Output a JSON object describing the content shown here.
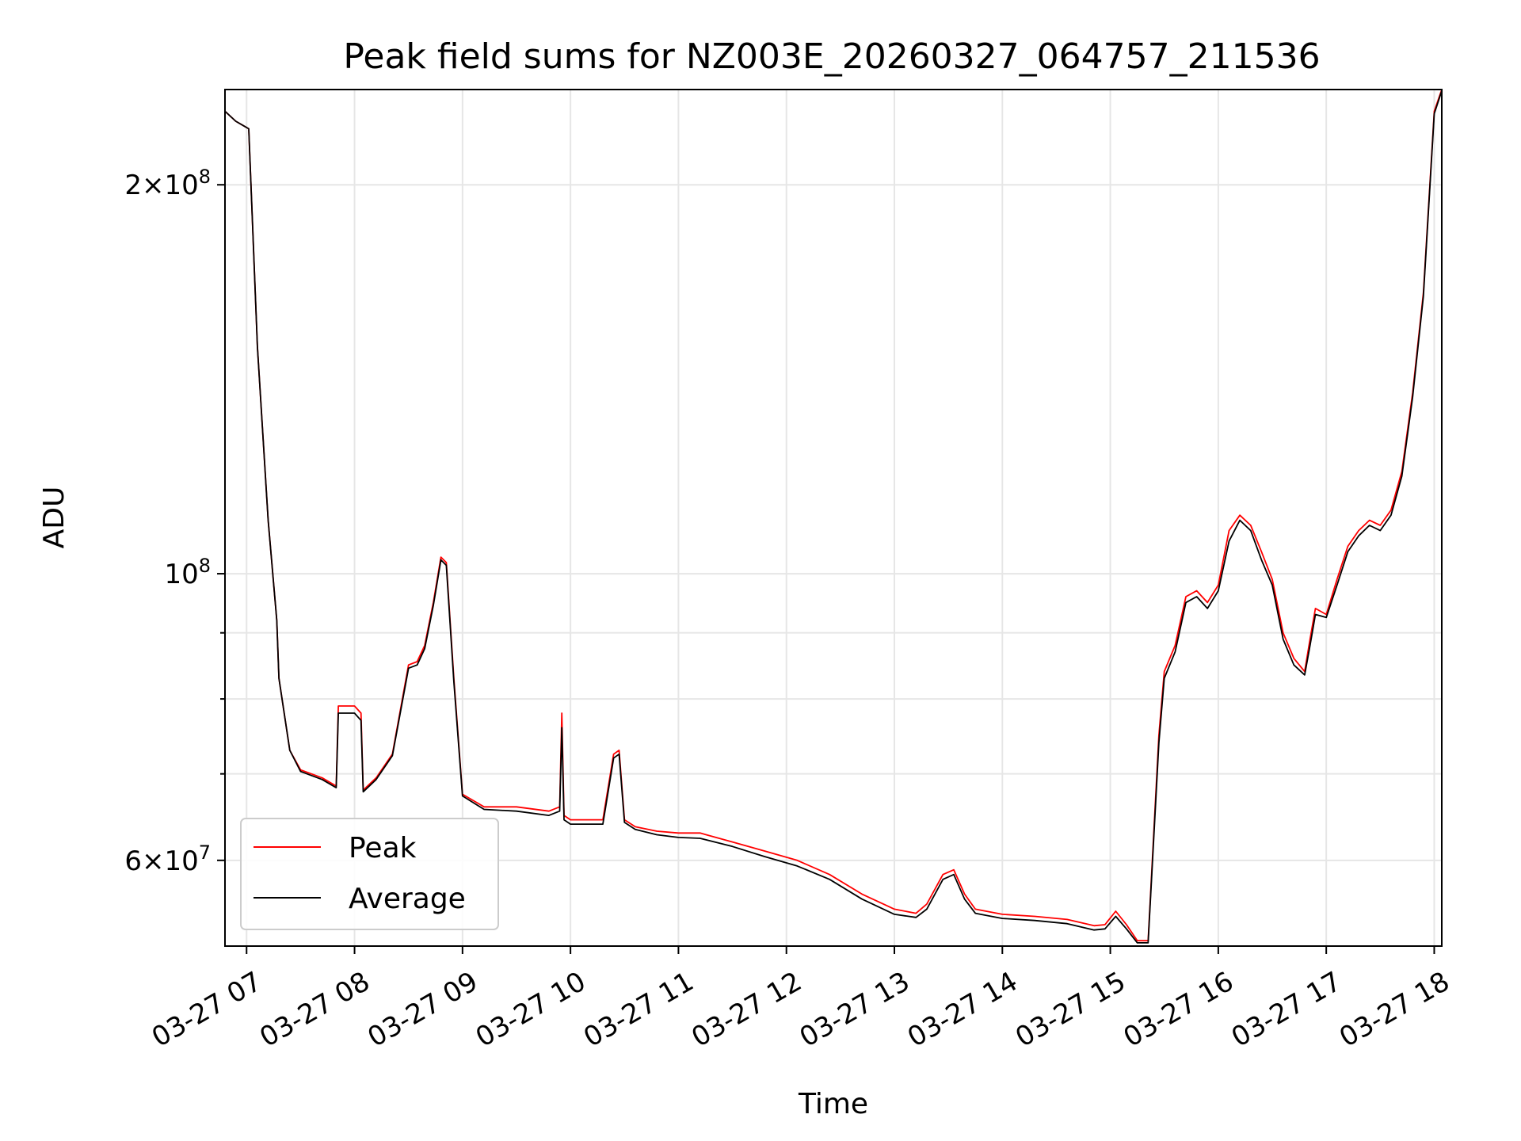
{
  "chart_data": {
    "type": "line",
    "title": "Peak field sums for NZ003E_20260327_064757_211536",
    "xlabel": "Time",
    "ylabel": "ADU",
    "yscale": "log",
    "ylim": [
      51500000,
      237000000
    ],
    "xlim": [
      6.8,
      18.07
    ],
    "grid": true,
    "legend_position": "lower-left",
    "x_ticks": [
      {
        "value": 7,
        "label": "03-27 07"
      },
      {
        "value": 8,
        "label": "03-27 08"
      },
      {
        "value": 9,
        "label": "03-27 09"
      },
      {
        "value": 10,
        "label": "03-27 10"
      },
      {
        "value": 11,
        "label": "03-27 11"
      },
      {
        "value": 12,
        "label": "03-27 12"
      },
      {
        "value": 13,
        "label": "03-27 13"
      },
      {
        "value": 14,
        "label": "03-27 14"
      },
      {
        "value": 15,
        "label": "03-27 15"
      },
      {
        "value": 16,
        "label": "03-27 16"
      },
      {
        "value": 17,
        "label": "03-27 17"
      },
      {
        "value": 18,
        "label": "03-27 18"
      }
    ],
    "y_major_ticks": [
      {
        "value": 60000000,
        "mantissa": "6",
        "exponent": "7"
      },
      {
        "value": 100000000,
        "mantissa": "",
        "exponent": "8"
      },
      {
        "value": 200000000,
        "mantissa": "2",
        "exponent": "8"
      }
    ],
    "y_minor_ticks": [
      70000000,
      80000000,
      90000000
    ],
    "series": [
      {
        "name": "Peak",
        "color": "#ff0000",
        "x": [
          6.8,
          6.9,
          6.98,
          7.02,
          7.1,
          7.2,
          7.28,
          7.3,
          7.4,
          7.5,
          7.7,
          7.83,
          7.85,
          8.0,
          8.06,
          8.08,
          8.2,
          8.35,
          8.5,
          8.58,
          8.65,
          8.73,
          8.8,
          8.85,
          8.92,
          9.0,
          9.2,
          9.5,
          9.8,
          9.9,
          9.92,
          9.94,
          10.0,
          10.3,
          10.4,
          10.45,
          10.5,
          10.6,
          10.8,
          11.0,
          11.2,
          11.5,
          11.8,
          12.1,
          12.4,
          12.7,
          13.0,
          13.2,
          13.3,
          13.45,
          13.55,
          13.65,
          13.75,
          13.85,
          14.0,
          14.3,
          14.6,
          14.85,
          14.95,
          15.05,
          15.15,
          15.25,
          15.35,
          15.45,
          15.5,
          15.6,
          15.7,
          15.8,
          15.9,
          16.0,
          16.1,
          16.2,
          16.3,
          16.4,
          16.5,
          16.6,
          16.7,
          16.8,
          16.85,
          16.9,
          17.0,
          17.1,
          17.2,
          17.3,
          17.4,
          17.5,
          17.6,
          17.7,
          17.8,
          17.9,
          18.0,
          18.07
        ],
        "y": [
          228000000,
          224000000,
          222000000,
          221000000,
          150000000,
          110000000,
          92000000,
          83000000,
          73000000,
          70500000,
          69500000,
          68500000,
          79000000,
          79000000,
          78000000,
          68000000,
          69500000,
          72500000,
          85000000,
          85500000,
          88000000,
          95000000,
          103000000,
          102000000,
          83000000,
          67500000,
          66000000,
          66000000,
          65500000,
          66000000,
          78000000,
          65000000,
          64500000,
          64500000,
          72500000,
          73000000,
          64500000,
          63700000,
          63200000,
          63000000,
          63000000,
          62000000,
          61000000,
          60000000,
          58500000,
          56500000,
          55000000,
          54600000,
          55500000,
          58500000,
          59000000,
          56500000,
          55000000,
          54800000,
          54500000,
          54300000,
          54000000,
          53400000,
          53500000,
          54800000,
          53500000,
          52000000,
          52000000,
          75000000,
          84000000,
          88000000,
          96000000,
          97000000,
          95000000,
          98000000,
          108000000,
          111000000,
          109000000,
          104000000,
          99000000,
          90000000,
          86000000,
          84000000,
          89000000,
          94000000,
          93000000,
          99000000,
          105000000,
          108000000,
          110000000,
          109000000,
          112000000,
          120000000,
          138000000,
          165000000,
          228000000,
          237000000
        ]
      },
      {
        "name": "Average",
        "color": "#000000",
        "x": [
          6.8,
          6.9,
          6.98,
          7.02,
          7.1,
          7.2,
          7.28,
          7.3,
          7.4,
          7.5,
          7.7,
          7.83,
          7.85,
          8.0,
          8.06,
          8.08,
          8.2,
          8.35,
          8.5,
          8.58,
          8.65,
          8.73,
          8.8,
          8.85,
          8.92,
          9.0,
          9.2,
          9.5,
          9.8,
          9.9,
          9.92,
          9.94,
          10.0,
          10.3,
          10.4,
          10.45,
          10.5,
          10.6,
          10.8,
          11.0,
          11.2,
          11.5,
          11.8,
          12.1,
          12.4,
          12.7,
          13.0,
          13.2,
          13.3,
          13.45,
          13.55,
          13.65,
          13.75,
          13.85,
          14.0,
          14.3,
          14.6,
          14.85,
          14.95,
          15.05,
          15.15,
          15.25,
          15.35,
          15.45,
          15.5,
          15.6,
          15.7,
          15.8,
          15.9,
          16.0,
          16.1,
          16.2,
          16.3,
          16.4,
          16.5,
          16.6,
          16.7,
          16.8,
          16.85,
          16.9,
          17.0,
          17.1,
          17.2,
          17.3,
          17.4,
          17.5,
          17.6,
          17.7,
          17.8,
          17.9,
          18.0,
          18.07
        ],
        "y": [
          228000000,
          224000000,
          222000000,
          221000000,
          150000000,
          110000000,
          92000000,
          83000000,
          73000000,
          70300000,
          69300000,
          68300000,
          78000000,
          78000000,
          77000000,
          67800000,
          69300000,
          72300000,
          84500000,
          85000000,
          87500000,
          94500000,
          102500000,
          101500000,
          82500000,
          67300000,
          65700000,
          65500000,
          65000000,
          65500000,
          76000000,
          64500000,
          64000000,
          64000000,
          72000000,
          72500000,
          64200000,
          63400000,
          62800000,
          62500000,
          62400000,
          61500000,
          60400000,
          59400000,
          58000000,
          56000000,
          54500000,
          54200000,
          55000000,
          58000000,
          58500000,
          56000000,
          54600000,
          54400000,
          54100000,
          53900000,
          53600000,
          53000000,
          53100000,
          54300000,
          53100000,
          51800000,
          51800000,
          74000000,
          83000000,
          87000000,
          95000000,
          96000000,
          94000000,
          97000000,
          106000000,
          110000000,
          108000000,
          102500000,
          98000000,
          89000000,
          85000000,
          83500000,
          88000000,
          93000000,
          92500000,
          98000000,
          104000000,
          107000000,
          109000000,
          108000000,
          111000000,
          119000000,
          137000000,
          164000000,
          227000000,
          236500000
        ]
      }
    ]
  }
}
